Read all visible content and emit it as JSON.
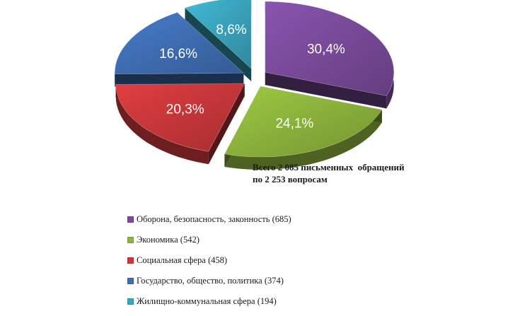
{
  "chart_data": {
    "type": "pie",
    "style": "3d-exploded",
    "slices": [
      {
        "label": "Оборона, безопасность, законность (685)",
        "value": 30.4,
        "display": "30,4%",
        "color": "#7a4b9b"
      },
      {
        "label": "Экономика (542)",
        "value": 24.1,
        "display": "24,1%",
        "color": "#8db43c"
      },
      {
        "label": "Социальная сфера (458)",
        "value": 20.3,
        "display": "20,3%",
        "color": "#c9373a"
      },
      {
        "label": "Государство, общество, политика (374)",
        "value": 16.6,
        "display": "16,6%",
        "color": "#3f6fb5"
      },
      {
        "label": "Жилищно-коммунальная сфера (194)",
        "value": 8.6,
        "display": "8,6%",
        "color": "#3aa6bf"
      }
    ],
    "annotation_lines": [
      "Всего 2 085 письменных  обращений",
      "по 2 253 вопросам"
    ],
    "legend_position": "bottom-left"
  }
}
